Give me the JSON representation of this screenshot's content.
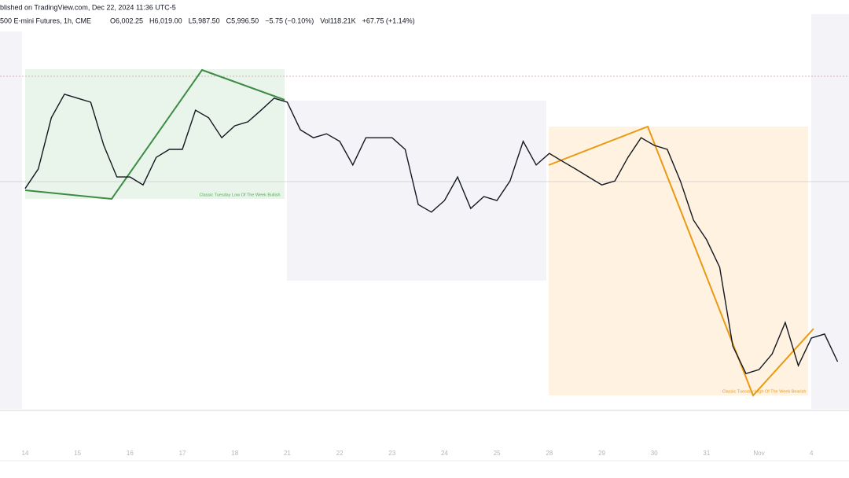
{
  "header": {
    "published": "blished on TradingView.com, Dec 22, 2024 11:36 UTC-5",
    "symbol": "500 E-mini Futures, 1h, CME",
    "ohlc": [
      "O6,002.25",
      "H6,019.00",
      "L5,987.50",
      "C5,996.50",
      "−5.75 (−0.10%)",
      "Vol118.21K",
      "+67.75 (+1.14%)"
    ]
  },
  "chart_data": {
    "type": "line",
    "color": "#131722",
    "annotations": [
      "Classic Tuesday Low Of The Week Bullish",
      "Classic Tuesday High Of The Week Bearish"
    ],
    "categories": [
      "14",
      null,
      null,
      null,
      "15",
      null,
      null,
      null,
      "16",
      null,
      null,
      null,
      "17",
      null,
      null,
      null,
      "18",
      null,
      null,
      null,
      "21",
      null,
      null,
      null,
      "22",
      null,
      null,
      null,
      "23",
      null,
      null,
      null,
      "24",
      null,
      null,
      null,
      "25",
      null,
      null,
      null,
      "28",
      null,
      null,
      null,
      "29",
      null,
      null,
      null,
      "30",
      null,
      null,
      null,
      "31",
      null,
      null,
      null,
      "Nov",
      null,
      null,
      null,
      "4",
      null,
      null
    ],
    "values": [
      5851.75,
      5865.25,
      5900.5,
      5916.75,
      5914,
      5911.25,
      5881.5,
      5859.75,
      5859.75,
      5854.25,
      5873.25,
      5878.75,
      5878.75,
      5905.75,
      5900.5,
      5886.75,
      5895,
      5897.75,
      5905.75,
      5914,
      5911.25,
      5892.25,
      5886.75,
      5889.5,
      5884.25,
      5868,
      5886.75,
      5886.75,
      5886.75,
      5878.75,
      5840.75,
      5835.5,
      5843.5,
      5859.75,
      5838,
      5846.25,
      5843.5,
      5857,
      5884.25,
      5868,
      5876,
      5870.5,
      5865.25,
      5859.75,
      5854.25,
      5857,
      5873.25,
      5886.75,
      5881.5,
      5878.75,
      5857,
      5830,
      5816.5,
      5797.5,
      5743.25,
      5724.25,
      5727,
      5737.75,
      5759.5,
      5729.75,
      5748.75,
      5751.5,
      5732.5
    ],
    "ylim": [
      5700,
      5960
    ]
  }
}
